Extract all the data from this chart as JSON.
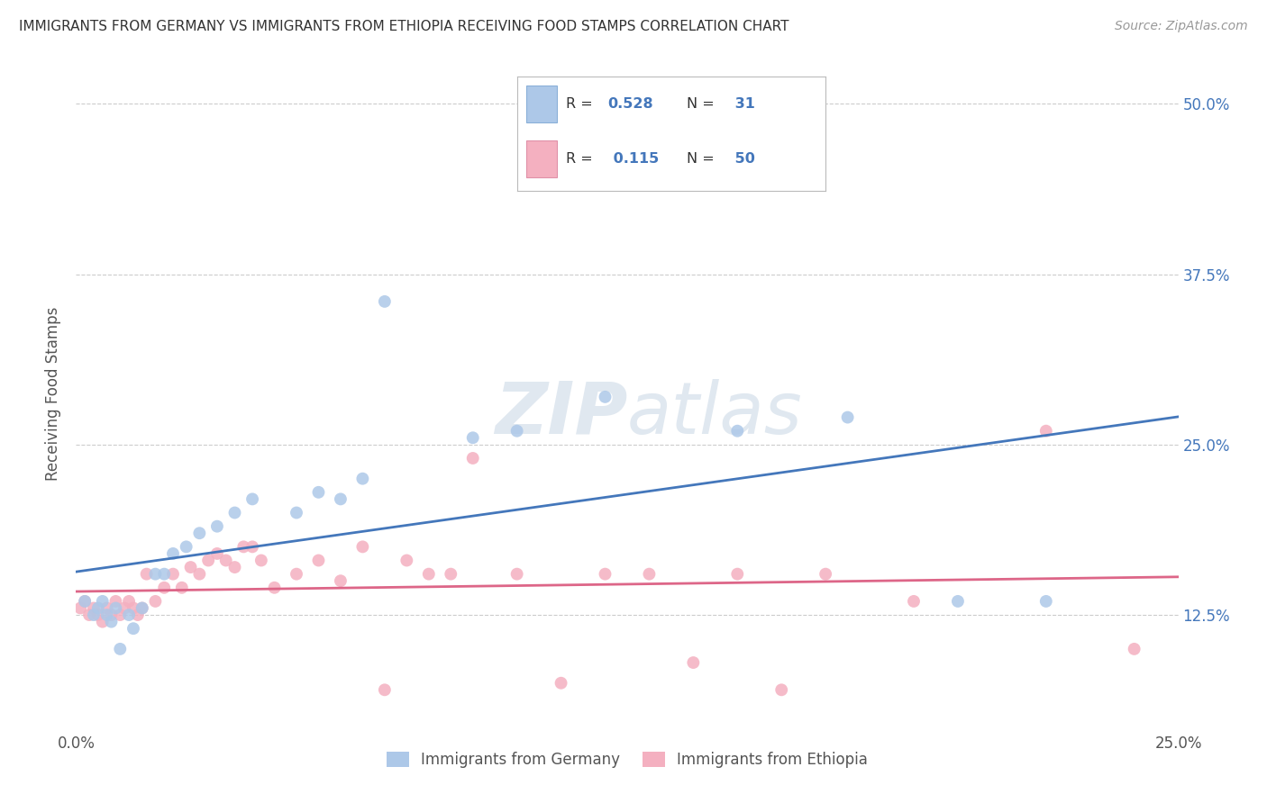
{
  "title": "IMMIGRANTS FROM GERMANY VS IMMIGRANTS FROM ETHIOPIA RECEIVING FOOD STAMPS CORRELATION CHART",
  "source": "Source: ZipAtlas.com",
  "ylabel": "Receiving Food Stamps",
  "ytick_labels": [
    "12.5%",
    "25.0%",
    "37.5%",
    "50.0%"
  ],
  "ytick_values": [
    0.125,
    0.25,
    0.375,
    0.5
  ],
  "xlim": [
    0.0,
    0.25
  ],
  "ylim": [
    0.04,
    0.535
  ],
  "germany_color": "#adc8e8",
  "ethiopia_color": "#f4b0c0",
  "germany_line_color": "#4477bb",
  "ethiopia_line_color": "#dd6688",
  "germany_R": 0.528,
  "germany_N": 31,
  "ethiopia_R": 0.115,
  "ethiopia_N": 50,
  "legend_label_germany": "Immigrants from Germany",
  "legend_label_ethiopia": "Immigrants from Ethiopia",
  "germany_x": [
    0.002,
    0.004,
    0.005,
    0.006,
    0.007,
    0.008,
    0.009,
    0.01,
    0.012,
    0.013,
    0.015,
    0.018,
    0.02,
    0.022,
    0.025,
    0.028,
    0.032,
    0.036,
    0.04,
    0.05,
    0.055,
    0.06,
    0.065,
    0.07,
    0.09,
    0.1,
    0.12,
    0.15,
    0.175,
    0.2,
    0.22
  ],
  "germany_y": [
    0.135,
    0.125,
    0.13,
    0.135,
    0.125,
    0.12,
    0.13,
    0.1,
    0.125,
    0.115,
    0.13,
    0.155,
    0.155,
    0.17,
    0.175,
    0.185,
    0.19,
    0.2,
    0.21,
    0.2,
    0.215,
    0.21,
    0.225,
    0.355,
    0.255,
    0.26,
    0.285,
    0.26,
    0.27,
    0.135,
    0.135
  ],
  "ethiopia_x": [
    0.001,
    0.002,
    0.003,
    0.004,
    0.005,
    0.006,
    0.007,
    0.008,
    0.009,
    0.01,
    0.011,
    0.012,
    0.013,
    0.014,
    0.015,
    0.016,
    0.018,
    0.02,
    0.022,
    0.024,
    0.026,
    0.028,
    0.03,
    0.032,
    0.034,
    0.036,
    0.038,
    0.04,
    0.042,
    0.045,
    0.05,
    0.055,
    0.06,
    0.065,
    0.07,
    0.075,
    0.08,
    0.085,
    0.09,
    0.1,
    0.11,
    0.12,
    0.13,
    0.14,
    0.15,
    0.16,
    0.17,
    0.19,
    0.22,
    0.24
  ],
  "ethiopia_y": [
    0.13,
    0.135,
    0.125,
    0.13,
    0.125,
    0.12,
    0.13,
    0.125,
    0.135,
    0.125,
    0.13,
    0.135,
    0.13,
    0.125,
    0.13,
    0.155,
    0.135,
    0.145,
    0.155,
    0.145,
    0.16,
    0.155,
    0.165,
    0.17,
    0.165,
    0.16,
    0.175,
    0.175,
    0.165,
    0.145,
    0.155,
    0.165,
    0.15,
    0.175,
    0.07,
    0.165,
    0.155,
    0.155,
    0.24,
    0.155,
    0.075,
    0.155,
    0.155,
    0.09,
    0.155,
    0.07,
    0.155,
    0.135,
    0.26,
    0.1
  ],
  "background_color": "#ffffff",
  "grid_color": "#cccccc",
  "watermark_color": "#e0e8f0"
}
